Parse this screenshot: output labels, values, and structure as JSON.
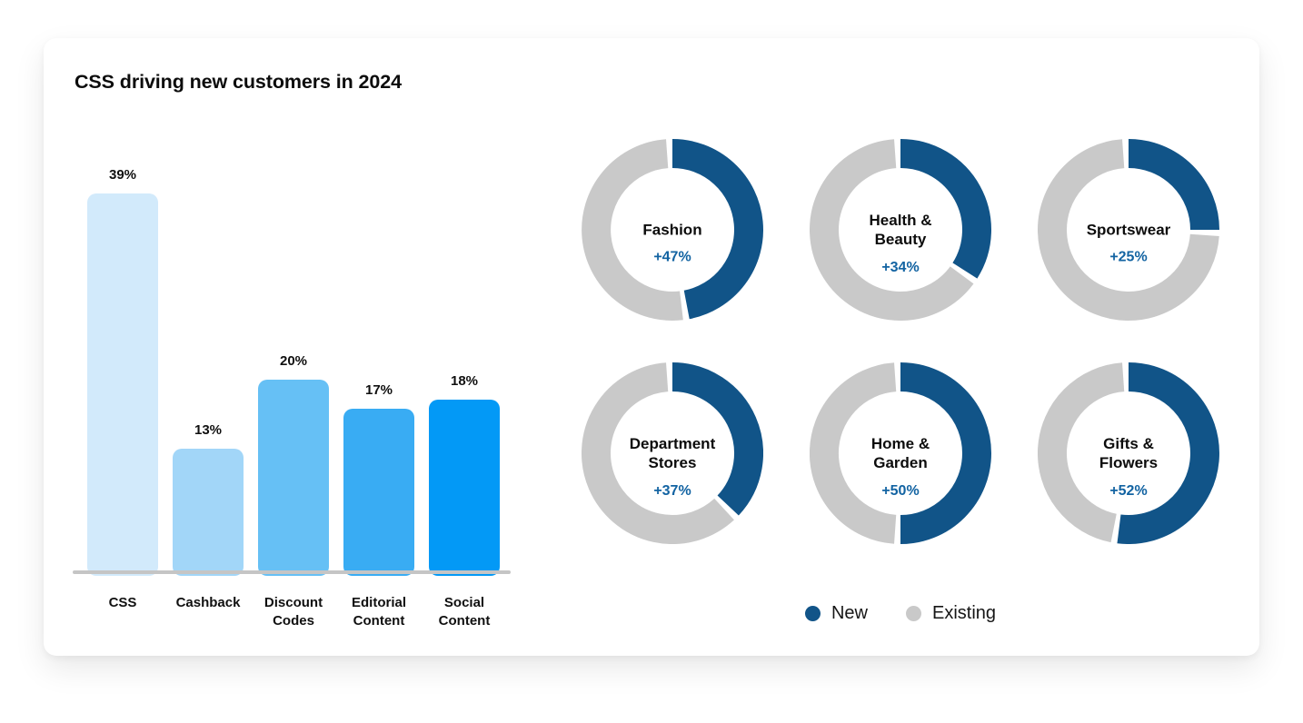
{
  "title": "CSS driving new customers in 2024",
  "colors": {
    "donut_new": "#115488",
    "donut_existing": "#c9c9c9",
    "pct_text": "#1263a2",
    "axis_line": "#c5c5c5",
    "text": "#0c0c0c"
  },
  "chart_data": [
    {
      "type": "bar",
      "title": "CSS driving new customers in 2024",
      "categories": [
        "CSS",
        "Cashback",
        "Discount Codes",
        "Editorial Content",
        "Social Content"
      ],
      "values": [
        39,
        13,
        20,
        17,
        18
      ],
      "value_labels": [
        "39%",
        "13%",
        "20%",
        "17%",
        "18%"
      ],
      "bar_colors": [
        "#d2eafb",
        "#a2d6f8",
        "#66c0f5",
        "#39acf3",
        "#0399f6"
      ],
      "ylim": [
        0,
        42
      ],
      "grid": false,
      "legend_position": "none"
    },
    {
      "type": "pie",
      "subtype": "donut-grid",
      "series_names": [
        "New",
        "Existing"
      ],
      "donuts": [
        {
          "label": "Fashion",
          "pct_label": "+47%",
          "new_pct": 47,
          "existing_pct": 53
        },
        {
          "label": "Health & Beauty",
          "pct_label": "+34%",
          "new_pct": 34,
          "existing_pct": 66
        },
        {
          "label": "Sportswear",
          "pct_label": "+25%",
          "new_pct": 25,
          "existing_pct": 75
        },
        {
          "label": "Department Stores",
          "pct_label": "+37%",
          "new_pct": 37,
          "existing_pct": 63
        },
        {
          "label": "Home & Garden",
          "pct_label": "+50%",
          "new_pct": 50,
          "existing_pct": 50
        },
        {
          "label": "Gifts & Flowers",
          "pct_label": "+52%",
          "new_pct": 52,
          "existing_pct": 48
        }
      ],
      "legend": [
        {
          "label": "New",
          "color": "#115488"
        },
        {
          "label": "Existing",
          "color": "#c9c9c9"
        }
      ],
      "legend_position": "bottom-center"
    }
  ]
}
